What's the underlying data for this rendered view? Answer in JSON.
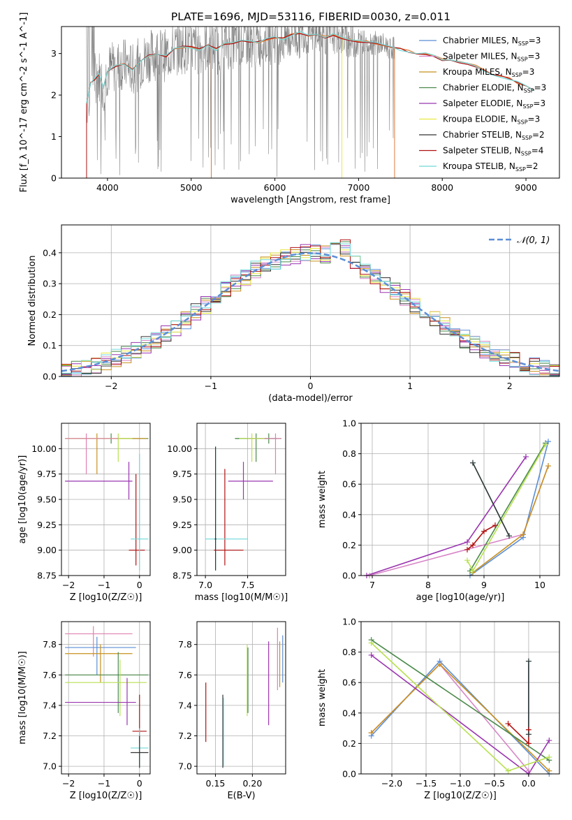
{
  "title": "PLATE=1696, MJD=53116, FIBERID=0030, z=0.011",
  "colors": {
    "chab_miles": "#5b8ed6",
    "salp_miles": "#d886c8",
    "krou_miles": "#c8901e",
    "chab_elodie": "#4a8a4a",
    "salp_elodie": "#9a35b0",
    "krou_elodie": "#e8e840",
    "chab_stelib": "#333333",
    "salp_stelib": "#b01010",
    "krou_stelib": "#70d8d8",
    "data": "#808080",
    "orange": "#e07b39",
    "lime": "#b8e050",
    "pink": "#e080b0"
  },
  "chart_data": [
    {
      "id": "spectrum",
      "type": "line",
      "xlabel": "wavelength [Angstrom, rest frame]",
      "ylabel": "Flux [f_λ 10^-17 erg cm^-2 s^-1 A^-1]",
      "xlim": [
        3450,
        9400
      ],
      "ylim": [
        0,
        3.65
      ],
      "xticks": [
        4000,
        5000,
        6000,
        7000,
        8000,
        9000
      ],
      "yticks": [
        0,
        1,
        2,
        3
      ],
      "grid": false,
      "legend": "top-right",
      "legend_entries": [
        {
          "label": "Chabrier MILES, N_SSP=3",
          "color_key": "chab_miles"
        },
        {
          "label": "Salpeter MILES, N_SSP=3",
          "color_key": "salp_miles"
        },
        {
          "label": "Kroupa MILES, N_SSP=3",
          "color_key": "krou_miles"
        },
        {
          "label": "Chabrier ELODIE, N_SSP=3",
          "color_key": "chab_elodie"
        },
        {
          "label": "Salpeter ELODIE, N_SSP=3",
          "color_key": "salp_elodie"
        },
        {
          "label": "Kroupa ELODIE, N_SSP=3",
          "color_key": "krou_elodie"
        },
        {
          "label": "Chabrier STELIB, N_SSP=2",
          "color_key": "chab_stelib"
        },
        {
          "label": "Salpeter STELIB, N_SSP=4",
          "color_key": "salp_stelib"
        },
        {
          "label": "Kroupa STELIB, N_SSP=2",
          "color_key": "krou_stelib"
        }
      ],
      "model_curve": {
        "x": [
          3750,
          3800,
          3850,
          3900,
          3950,
          4000,
          4100,
          4200,
          4300,
          4400,
          4500,
          4600,
          4700,
          4800,
          4900,
          5000,
          5100,
          5200,
          5300,
          5400,
          5500,
          5600,
          5700,
          5800,
          5900,
          6000,
          6100,
          6200,
          6300,
          6400,
          6500,
          6600,
          6700,
          6800,
          6900,
          7000,
          7100,
          7200,
          7300,
          7400,
          7500,
          7600,
          7700,
          7800,
          7900,
          8000,
          8100,
          8200,
          8300,
          8400,
          8500,
          8600,
          8700,
          8800,
          8900,
          9000,
          9100
        ],
        "y": [
          1.8,
          2.3,
          2.4,
          2.5,
          2.2,
          2.6,
          2.7,
          2.75,
          2.6,
          2.8,
          2.95,
          3.0,
          2.95,
          3.1,
          3.15,
          3.15,
          3.1,
          3.2,
          3.1,
          3.25,
          3.25,
          3.3,
          3.3,
          3.28,
          3.35,
          3.4,
          3.35,
          3.45,
          3.5,
          3.42,
          3.45,
          3.4,
          3.45,
          3.38,
          3.32,
          3.3,
          3.28,
          3.25,
          3.2,
          3.15,
          3.1,
          3.05,
          3.0,
          3.0,
          2.95,
          2.85,
          2.85,
          2.8,
          2.75,
          2.7,
          2.6,
          2.5,
          2.45,
          2.4,
          2.3,
          2.2,
          2.1
        ]
      },
      "data_range": [
        3750,
        7430
      ]
    },
    {
      "id": "residual-hist",
      "type": "bar",
      "xlabel": "(data-model)/error",
      "ylabel": "Normed distribution",
      "xlim": [
        -2.5,
        2.5
      ],
      "ylim": [
        0,
        0.49
      ],
      "xticks": [
        -2,
        -1,
        0,
        1,
        2
      ],
      "yticks": [
        0.0,
        0.1,
        0.2,
        0.3,
        0.4
      ],
      "grid": true,
      "legend": "top-right",
      "legend_entries": [
        {
          "label": "𝒩(0, 1)",
          "color_key": "chab_miles"
        }
      ],
      "bin_width": 0.1
    },
    {
      "id": "age-vs-z",
      "type": "scatter",
      "xlabel": "Z [log10(Z/Z☉)]",
      "ylabel": "age  [log10(age/yr)]",
      "xlim": [
        -2.2,
        0.3
      ],
      "ylim": [
        8.75,
        10.25
      ],
      "xticks": [
        -2,
        -1,
        0
      ],
      "yticks": [
        8.75,
        9.0,
        9.25,
        9.5,
        9.75,
        10.0
      ],
      "grid": true,
      "points": [
        {
          "x": -0.8,
          "y": 10.1,
          "xlo": -2.1,
          "xhi": 0.25,
          "ylo": 10.05,
          "yhi": 10.15,
          "c": "chab_elodie"
        },
        {
          "x": -1.2,
          "y": 10.1,
          "xlo": -2.1,
          "xhi": 0.2,
          "ylo": 9.75,
          "yhi": 10.15,
          "c": "krou_miles"
        },
        {
          "x": -0.6,
          "y": 10.1,
          "xlo": -2.1,
          "xhi": -0.2,
          "ylo": 9.87,
          "yhi": 10.15,
          "c": "lime"
        },
        {
          "x": -1.5,
          "y": 10.1,
          "xlo": -2.1,
          "xhi": -0.6,
          "ylo": 9.75,
          "yhi": 10.15,
          "c": "pink"
        },
        {
          "x": -0.3,
          "y": 9.68,
          "xlo": -2.1,
          "xhi": -0.2,
          "ylo": 9.5,
          "yhi": 9.87,
          "c": "salp_elodie"
        },
        {
          "x": -0.1,
          "y": 9.0,
          "xlo": -0.3,
          "xhi": 0.15,
          "ylo": 8.85,
          "yhi": 9.75,
          "c": "salp_stelib"
        },
        {
          "x": 0.0,
          "y": 9.11,
          "xlo": -0.25,
          "xhi": 0.25,
          "ylo": 8.8,
          "yhi": 9.95,
          "c": "krou_stelib"
        }
      ]
    },
    {
      "id": "age-vs-mass",
      "type": "scatter",
      "xlabel": "mass [log10(M/M☉)]",
      "ylabel": "",
      "xlim": [
        6.9,
        7.95
      ],
      "ylim": [
        8.75,
        10.25
      ],
      "xticks": [
        7.0,
        7.5
      ],
      "yticks": [
        8.75,
        9.0,
        9.25,
        9.5,
        9.75,
        10.0
      ],
      "grid": true,
      "points": [
        {
          "x": 7.75,
          "y": 10.1,
          "xlo": 7.35,
          "xhi": 7.9,
          "ylo": 10.05,
          "yhi": 10.15,
          "c": "chab_elodie"
        },
        {
          "x": 7.6,
          "y": 10.1,
          "xlo": 7.35,
          "xhi": 7.85,
          "ylo": 9.87,
          "yhi": 10.15,
          "c": "chab_elodie"
        },
        {
          "x": 7.83,
          "y": 10.1,
          "xlo": 7.5,
          "xhi": 7.9,
          "ylo": 9.75,
          "yhi": 10.15,
          "c": "pink"
        },
        {
          "x": 7.55,
          "y": 10.1,
          "xlo": 7.4,
          "xhi": 7.7,
          "ylo": 9.87,
          "yhi": 10.15,
          "c": "lime"
        },
        {
          "x": 7.45,
          "y": 9.68,
          "xlo": 7.27,
          "xhi": 7.8,
          "ylo": 9.5,
          "yhi": 9.87,
          "c": "salp_elodie"
        },
        {
          "x": 7.23,
          "y": 9.0,
          "xlo": 7.1,
          "xhi": 7.45,
          "ylo": 8.85,
          "yhi": 9.8,
          "c": "salp_stelib"
        },
        {
          "x": 7.12,
          "y": 9.11,
          "xlo": 7.0,
          "xhi": 7.5,
          "ylo": 8.8,
          "yhi": 10.02,
          "c": "krou_stelib"
        },
        {
          "x": 7.12,
          "y": 9.11,
          "xlo": 7.11,
          "xhi": 7.13,
          "ylo": 8.8,
          "yhi": 10.02,
          "c": "chab_stelib"
        }
      ]
    },
    {
      "id": "mass-weight-vs-age",
      "type": "line",
      "xlabel": "age  [log10(age/yr)]",
      "ylabel": "mass weight",
      "xlim": [
        6.8,
        10.35
      ],
      "ylim": [
        0,
        1.0
      ],
      "xticks": [
        7,
        8,
        9,
        10
      ],
      "yticks": [
        0.0,
        0.2,
        0.4,
        0.6,
        0.8,
        1.0
      ],
      "grid": true,
      "series": [
        {
          "c": "chab_miles",
          "x": [
            8.75,
            9.7,
            10.15
          ],
          "y": [
            0.0,
            0.25,
            0.88
          ]
        },
        {
          "c": "salp_miles",
          "x": [
            6.95,
            9.7,
            10.15
          ],
          "y": [
            0.0,
            0.27,
            0.72
          ]
        },
        {
          "c": "krou_miles",
          "x": [
            8.8,
            9.7,
            10.15
          ],
          "y": [
            0.02,
            0.27,
            0.72
          ]
        },
        {
          "c": "chab_elodie",
          "x": [
            8.75,
            10.1
          ],
          "y": [
            0.03,
            0.87
          ]
        },
        {
          "c": "salp_elodie",
          "x": [
            6.9,
            8.7,
            9.75
          ],
          "y": [
            0.0,
            0.22,
            0.78
          ]
        },
        {
          "c": "lime",
          "x": [
            8.7,
            8.8,
            10.1
          ],
          "y": [
            0.1,
            0.03,
            0.86
          ]
        },
        {
          "c": "salp_stelib",
          "x": [
            8.7,
            8.8,
            9.0,
            9.2
          ],
          "y": [
            0.17,
            0.2,
            0.29,
            0.33
          ]
        },
        {
          "c": "krou_stelib",
          "x": [
            8.8,
            9.45
          ],
          "y": [
            0.74,
            0.26
          ]
        },
        {
          "c": "chab_stelib",
          "x": [
            8.8,
            9.45
          ],
          "y": [
            0.74,
            0.26
          ]
        }
      ]
    },
    {
      "id": "mass-vs-z",
      "type": "scatter",
      "xlabel": "Z [log10(Z/Z☉)]",
      "ylabel": "mass [log10(M/M☉)]",
      "xlim": [
        -2.2,
        0.3
      ],
      "ylim": [
        6.95,
        7.95
      ],
      "xticks": [
        -2,
        -1,
        0
      ],
      "yticks": [
        7.0,
        7.2,
        7.4,
        7.6,
        7.8
      ],
      "grid": true,
      "points": [
        {
          "x": -1.3,
          "y": 7.87,
          "xlo": -2.1,
          "xhi": -0.2,
          "ylo": 7.72,
          "yhi": 7.92,
          "c": "pink"
        },
        {
          "x": -1.2,
          "y": 7.78,
          "xlo": -2.1,
          "xhi": -0.1,
          "ylo": 7.6,
          "yhi": 7.85,
          "c": "chab_miles"
        },
        {
          "x": -1.1,
          "y": 7.74,
          "xlo": -2.1,
          "xhi": -0.2,
          "ylo": 7.55,
          "yhi": 7.8,
          "c": "krou_miles"
        },
        {
          "x": -0.6,
          "y": 7.6,
          "xlo": -2.1,
          "xhi": 0.25,
          "ylo": 7.35,
          "yhi": 7.75,
          "c": "chab_elodie"
        },
        {
          "x": -0.55,
          "y": 7.55,
          "xlo": -2.1,
          "xhi": 0.2,
          "ylo": 7.33,
          "yhi": 7.7,
          "c": "lime"
        },
        {
          "x": -0.35,
          "y": 7.42,
          "xlo": -2.1,
          "xhi": -0.1,
          "ylo": 7.27,
          "yhi": 7.58,
          "c": "salp_elodie"
        },
        {
          "x": 0.0,
          "y": 7.23,
          "xlo": -0.2,
          "xhi": 0.2,
          "ylo": 7.15,
          "yhi": 7.47,
          "c": "salp_stelib"
        },
        {
          "x": 0.0,
          "y": 7.12,
          "xlo": -0.25,
          "xhi": 0.25,
          "ylo": 7.0,
          "yhi": 7.25,
          "c": "krou_stelib"
        },
        {
          "x": 0.0,
          "y": 7.09,
          "xlo": -0.25,
          "xhi": 0.25,
          "ylo": 6.99,
          "yhi": 7.2,
          "c": "chab_stelib"
        }
      ]
    },
    {
      "id": "mass-vs-ebv",
      "type": "scatter",
      "xlabel": "E(B-V)",
      "ylabel": "",
      "xlim": [
        0.125,
        0.245
      ],
      "ylim": [
        6.95,
        7.95
      ],
      "xticks": [
        0.15,
        0.2
      ],
      "yticks": [
        7.0,
        7.2,
        7.4,
        7.6,
        7.8
      ],
      "grid": true,
      "points": [
        {
          "x": 0.137,
          "y": 7.35,
          "ylo": 7.16,
          "yhi": 7.55,
          "c": "salp_stelib"
        },
        {
          "x": 0.16,
          "y": 7.2,
          "ylo": 6.99,
          "yhi": 7.47,
          "c": "chab_stelib"
        },
        {
          "x": 0.161,
          "y": 7.2,
          "ylo": 7.0,
          "yhi": 7.45,
          "c": "krou_stelib"
        },
        {
          "x": 0.193,
          "y": 7.55,
          "ylo": 7.33,
          "yhi": 7.8,
          "c": "lime"
        },
        {
          "x": 0.194,
          "y": 7.6,
          "ylo": 7.35,
          "yhi": 7.78,
          "c": "chab_elodie"
        },
        {
          "x": 0.222,
          "y": 7.5,
          "ylo": 7.27,
          "yhi": 7.82,
          "c": "salp_elodie"
        },
        {
          "x": 0.234,
          "y": 7.7,
          "ylo": 7.5,
          "yhi": 7.91,
          "c": "pink"
        },
        {
          "x": 0.237,
          "y": 7.65,
          "ylo": 7.52,
          "yhi": 7.82,
          "c": "krou_miles"
        },
        {
          "x": 0.241,
          "y": 7.7,
          "ylo": 7.55,
          "yhi": 7.86,
          "c": "chab_miles"
        }
      ]
    },
    {
      "id": "mass-weight-vs-z",
      "type": "line",
      "xlabel": "Z [log10(Z/Z☉)]",
      "ylabel": "mass weight",
      "xlim": [
        -2.45,
        0.45
      ],
      "ylim": [
        0,
        1.0
      ],
      "xticks": [
        -2.0,
        -1.5,
        -1.0,
        -0.5,
        0.0
      ],
      "yticks": [
        0.0,
        0.2,
        0.4,
        0.6,
        0.8,
        1.0
      ],
      "grid": true,
      "series": [
        {
          "c": "chab_miles",
          "x": [
            -2.3,
            -1.3,
            0.3
          ],
          "y": [
            0.25,
            0.74,
            0.0
          ]
        },
        {
          "c": "salp_miles",
          "x": [
            -2.3,
            -1.3,
            0.0
          ],
          "y": [
            0.27,
            0.72,
            0.02
          ]
        },
        {
          "c": "krou_miles",
          "x": [
            -2.3,
            -1.3,
            0.3
          ],
          "y": [
            0.27,
            0.72,
            0.02
          ]
        },
        {
          "c": "chab_elodie",
          "x": [
            -2.3,
            0.3
          ],
          "y": [
            0.88,
            0.09
          ]
        },
        {
          "c": "salp_elodie",
          "x": [
            -2.3,
            0.0,
            0.3
          ],
          "y": [
            0.78,
            0.0,
            0.22
          ]
        },
        {
          "c": "lime",
          "x": [
            -2.3,
            -0.3,
            0.3
          ],
          "y": [
            0.86,
            0.02,
            0.11
          ]
        },
        {
          "c": "salp_stelib",
          "x": [
            -0.3,
            0.0,
            0.0
          ],
          "y": [
            0.33,
            0.2,
            0.29
          ]
        },
        {
          "c": "krou_stelib",
          "x": [
            0.0,
            0.0
          ],
          "y": [
            0.74,
            0.26
          ]
        },
        {
          "c": "chab_stelib",
          "x": [
            0.0,
            0.0
          ],
          "y": [
            0.74,
            0.26
          ]
        }
      ]
    }
  ]
}
